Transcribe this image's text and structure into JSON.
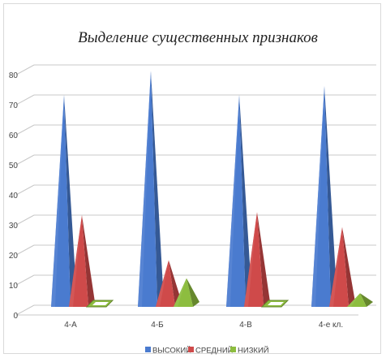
{
  "chart_data": {
    "type": "bar",
    "shape": "3d-pyramid",
    "title": "Выделение существенных признаков",
    "categories": [
      "4-А",
      "4-Б",
      "4-В",
      "4-е кл."
    ],
    "series": [
      {
        "name": "ВЫСОКИЙ",
        "color": "#4a7bcf",
        "values": [
          70,
          78,
          70,
          73
        ]
      },
      {
        "name": "СРЕДНИЙ",
        "color": "#cf4a4a",
        "values": [
          30,
          15,
          31,
          26
        ]
      },
      {
        "name": "НИЗКИЙ",
        "color": "#8dbd3f",
        "values": [
          0,
          9,
          0,
          4
        ]
      }
    ],
    "yticks": [
      0,
      10,
      20,
      30,
      40,
      50,
      60,
      70,
      80
    ],
    "ylim": [
      0,
      85
    ],
    "grid": true,
    "legend_position": "bottom"
  }
}
